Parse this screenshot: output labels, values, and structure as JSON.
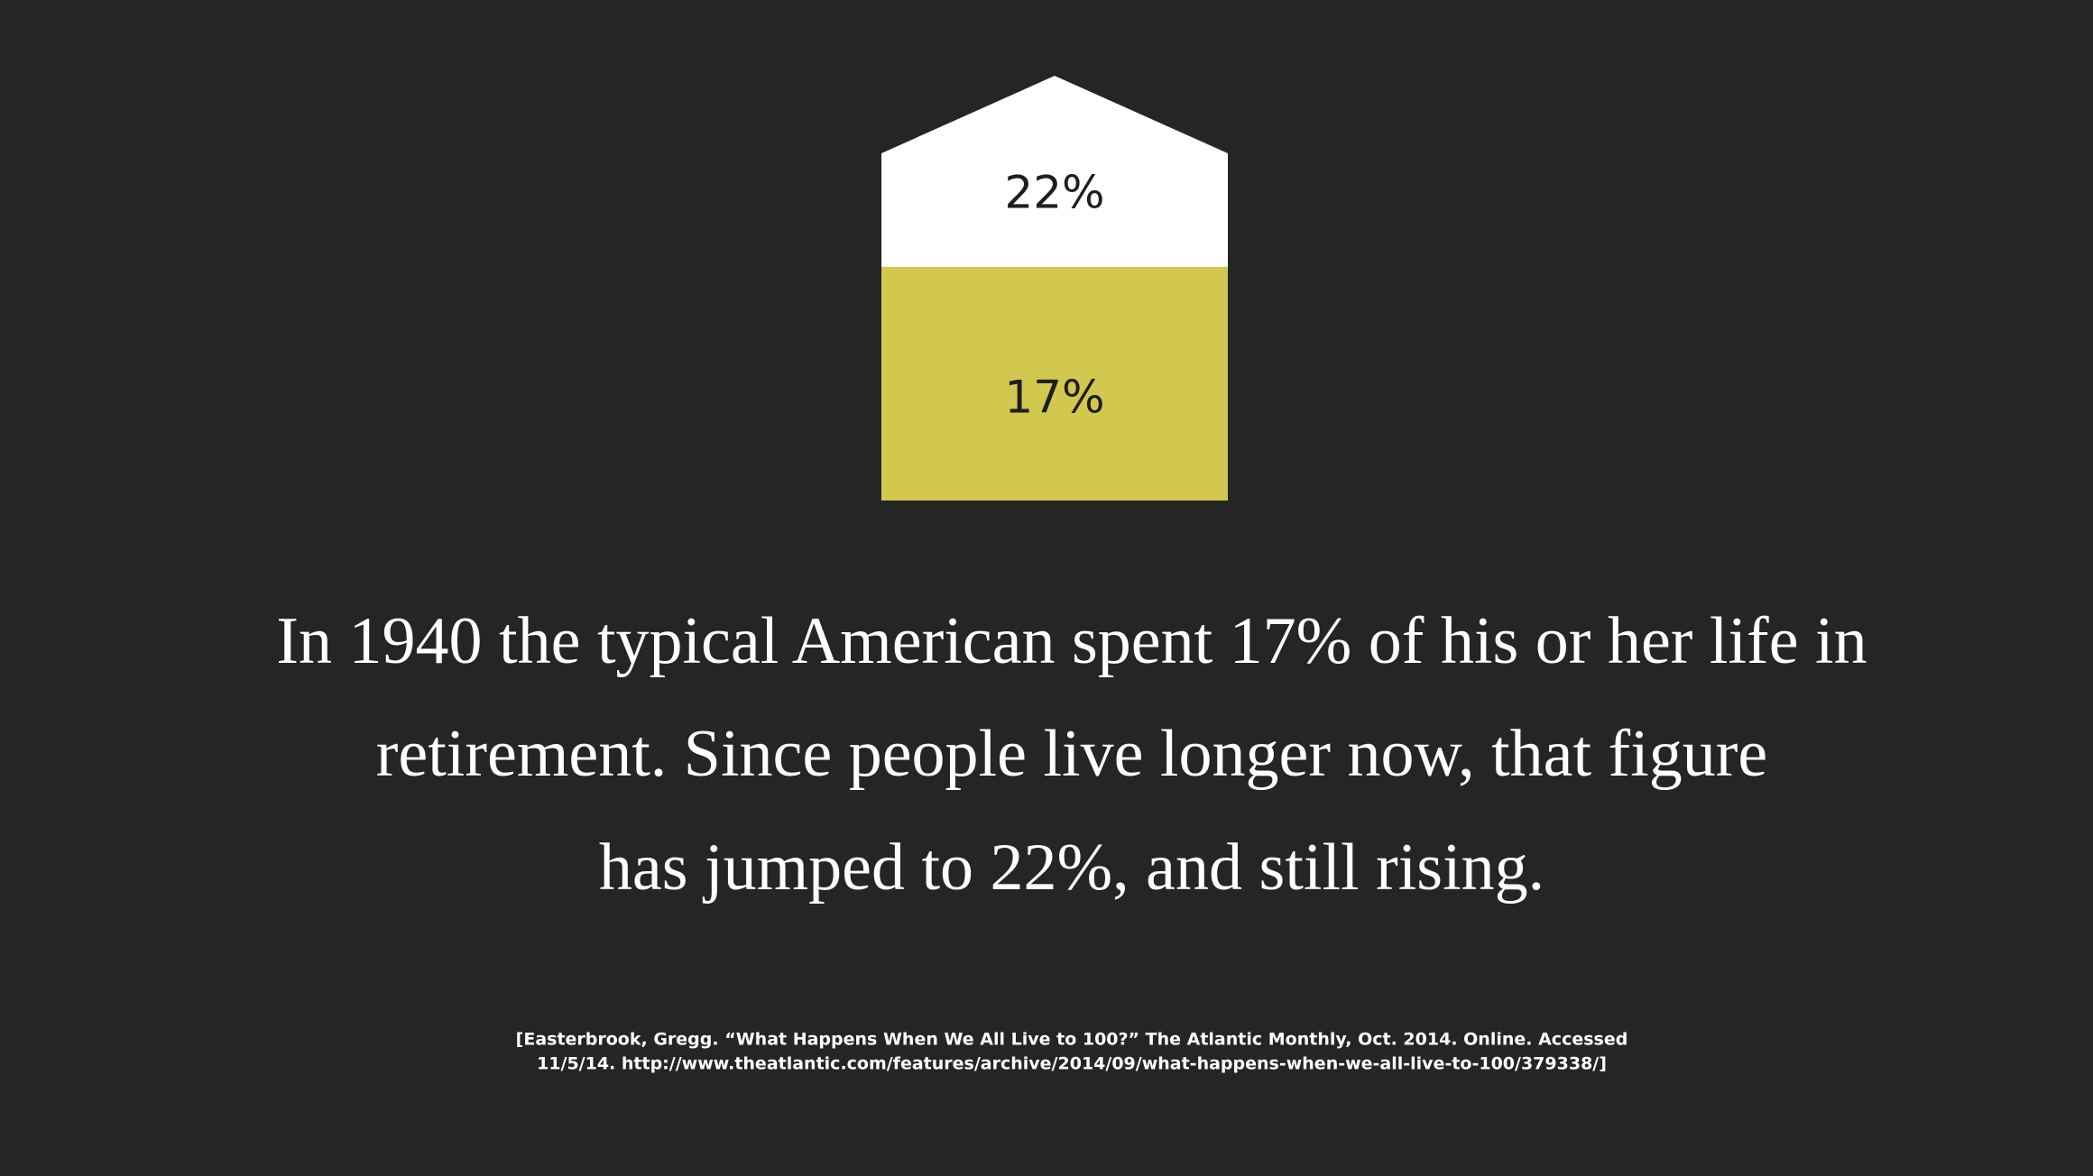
{
  "graphic": {
    "labels": [
      "22%",
      "17%"
    ]
  },
  "caption": {
    "lines": [
      "In 1940 the typical American spent 17% of his or her life in",
      "retirement. Since people live longer now, that figure",
      "has jumped to 22%, and still rising."
    ]
  },
  "citation": {
    "lines": [
      "[Easterbrook, Gregg. “What Happens When We All Live to 100?” The Atlantic Monthly, Oct. 2014. Online. Accessed",
      "11/5/14. http://www.theatlantic.com/features/archive/2014/09/what-happens-when-we-all-live-to-100/379338/]"
    ]
  }
}
